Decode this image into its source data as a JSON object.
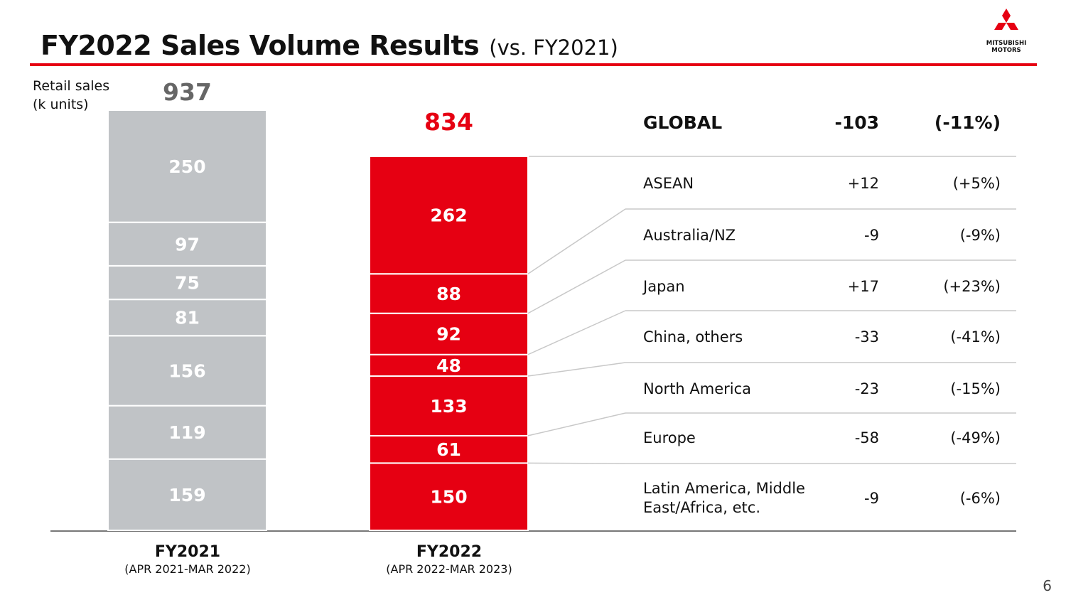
{
  "header": {
    "title": "FY2022 Sales Volume Results",
    "subtitle": "(vs. FY2021)",
    "logo_text": "MITSUBISHI MOTORS",
    "accent_color": "#e60012"
  },
  "y_axis_label": [
    "Retail sales",
    "(k units)"
  ],
  "chart_data": {
    "type": "bar",
    "stacked": true,
    "ylabel": "Retail sales (k units)",
    "categories": [
      "FY2021",
      "FY2022"
    ],
    "category_sublabels": [
      "(APR 2021-MAR 2022)",
      "(APR 2022-MAR 2023)"
    ],
    "totals": [
      937,
      834
    ],
    "colors": [
      "#c0c3c6",
      "#e60012"
    ],
    "segments_bottom_to_top": [
      {
        "region": "Latin America, Middle East/Africa, etc.",
        "values": [
          159,
          150
        ]
      },
      {
        "region": "Europe",
        "values": [
          119,
          61
        ]
      },
      {
        "region": "North America",
        "values": [
          156,
          133
        ]
      },
      {
        "region": "China, others",
        "values": [
          81,
          48
        ]
      },
      {
        "region": "Japan",
        "values": [
          75,
          92
        ]
      },
      {
        "region": "Australia/NZ",
        "values": [
          97,
          88
        ]
      },
      {
        "region": "ASEAN",
        "values": [
          250,
          262
        ]
      }
    ]
  },
  "table": {
    "global": {
      "name": "GLOBAL",
      "change": "-103",
      "pct": "(-11%)"
    },
    "rows": [
      {
        "name": "ASEAN",
        "change": "+12",
        "pct": "(+5%)"
      },
      {
        "name": "Australia/NZ",
        "change": "-9",
        "pct": "(-9%)"
      },
      {
        "name": "Japan",
        "change": "+17",
        "pct": "(+23%)"
      },
      {
        "name": "China, others",
        "change": "-33",
        "pct": "(-41%)"
      },
      {
        "name": "North America",
        "change": "-23",
        "pct": "(-15%)"
      },
      {
        "name": "Europe",
        "change": "-58",
        "pct": "(-49%)"
      },
      {
        "name": "Latin America, Middle East/Africa, etc.",
        "change": "-9",
        "pct": "(-6%)"
      }
    ]
  },
  "page_number": "6"
}
